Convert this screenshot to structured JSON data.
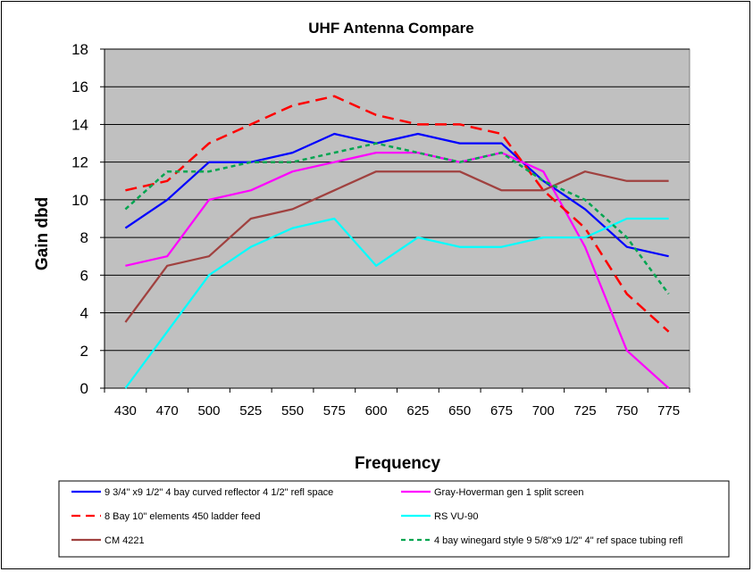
{
  "chart_data": {
    "type": "line",
    "title": "UHF Antenna Compare",
    "xlabel": "Frequency",
    "ylabel": "Gain dbd",
    "categories": [
      "430",
      "470",
      "500",
      "525",
      "550",
      "575",
      "600",
      "625",
      "650",
      "675",
      "700",
      "725",
      "750",
      "775"
    ],
    "ylim": [
      0,
      18
    ],
    "yticks": [
      0,
      2,
      4,
      6,
      8,
      10,
      12,
      14,
      16,
      18
    ],
    "grid": true,
    "legend_position": "bottom",
    "series": [
      {
        "name": "9 3/4\" x9 1/2\" 4 bay curved reflector 4 1/2\" refl space",
        "color": "#0000ff",
        "dash": "solid",
        "values": [
          8.5,
          10,
          12,
          12,
          12.5,
          13.5,
          13,
          13.5,
          13,
          13,
          11,
          9.5,
          7.5,
          7
        ]
      },
      {
        "name": "Gray-Hoverman gen 1 split screen",
        "color": "#ff00ff",
        "dash": "solid",
        "values": [
          6.5,
          7,
          10,
          10.5,
          11.5,
          12,
          12.5,
          12.5,
          12,
          12.5,
          11.5,
          7.5,
          2,
          0
        ]
      },
      {
        "name": "8 Bay 10\" elements 450 ladder feed",
        "color": "#ff0000",
        "dash": "long",
        "values": [
          10.5,
          11,
          13,
          14,
          15,
          15.5,
          14.5,
          14,
          14,
          13.5,
          10.5,
          8.5,
          5,
          3
        ]
      },
      {
        "name": "RS VU-90",
        "color": "#00ffff",
        "dash": "solid",
        "values": [
          0,
          3,
          6,
          7.5,
          8.5,
          9,
          6.5,
          8,
          7.5,
          7.5,
          8,
          8,
          9,
          9
        ]
      },
      {
        "name": "CM 4221",
        "color": "#a0413f",
        "dash": "solid",
        "values": [
          3.5,
          6.5,
          7,
          9,
          9.5,
          10.5,
          11.5,
          11.5,
          11.5,
          10.5,
          10.5,
          11.5,
          11,
          11
        ]
      },
      {
        "name": "4 bay winegard style 9 5/8\"x9  1/2\"  4\" ref space tubing refl",
        "color": "#00a550",
        "dash": "short",
        "values": [
          9.5,
          11.5,
          11.5,
          12,
          12,
          12.5,
          13,
          12.5,
          12,
          12.5,
          11,
          10,
          8,
          5
        ]
      }
    ]
  }
}
